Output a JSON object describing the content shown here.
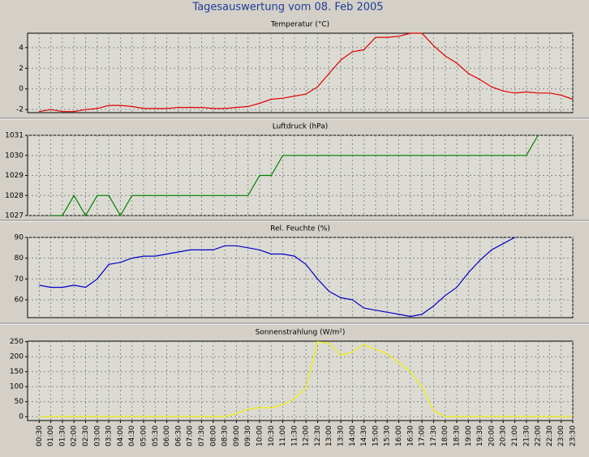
{
  "title": "Tagesauswertung vom 08. Feb 2005",
  "chart_data": [
    {
      "type": "line",
      "title": "Temperatur (°C)",
      "color": "#e00000",
      "x": [
        0.5,
        1,
        1.5,
        2,
        2.5,
        3,
        3.5,
        4,
        4.5,
        5,
        5.5,
        6,
        6.5,
        7,
        7.5,
        8,
        8.5,
        9,
        9.5,
        10,
        10.5,
        11,
        11.5,
        12,
        12.5,
        13,
        13.5,
        14,
        14.5,
        15,
        15.5,
        16,
        16.5,
        17,
        17.5,
        18,
        18.5,
        19,
        19.5,
        20,
        20.5,
        21,
        21.5,
        22,
        22.5,
        23,
        23.5
      ],
      "values": [
        -2.2,
        -2,
        -2.2,
        -2.2,
        -2,
        -1.9,
        -1.6,
        -1.6,
        -1.7,
        -1.9,
        -1.9,
        -1.9,
        -1.8,
        -1.8,
        -1.8,
        -1.9,
        -1.9,
        -1.8,
        -1.7,
        -1.4,
        -1,
        -0.9,
        -0.7,
        -0.5,
        0.2,
        1.5,
        2.8,
        3.6,
        3.8,
        5,
        5,
        5.1,
        5.4,
        5.4,
        4.2,
        3.2,
        2.5,
        1.5,
        0.9,
        0.2,
        -0.2,
        -0.4,
        -0.3,
        -0.4,
        -0.4,
        -0.6,
        -1
      ],
      "ylim": [
        -2.3,
        5.4
      ],
      "yticks": [
        -2,
        0,
        2,
        4
      ],
      "grid": true
    },
    {
      "type": "line",
      "title": "Luftdruck (hPa)",
      "color": "#008000",
      "x": [
        0.5,
        1,
        1.5,
        2,
        2.5,
        3,
        3.5,
        4,
        4.5,
        5,
        5.5,
        6,
        6.5,
        7,
        7.5,
        8,
        8.5,
        9,
        9.5,
        10,
        10.5,
        11,
        11.5,
        12,
        12.5,
        13,
        13.5,
        14,
        14.5,
        15,
        15.5,
        16,
        16.5,
        17,
        17.5,
        18,
        18.5,
        19,
        19.5,
        20,
        20.5,
        21,
        21.5,
        22,
        22.5,
        23,
        23.5
      ],
      "values": [
        null,
        1027,
        1027,
        1028,
        1027,
        1028,
        1028,
        1027,
        1028,
        1028,
        1028,
        1028,
        1028,
        1028,
        1028,
        1028,
        1028,
        1028,
        1028,
        1029,
        1029,
        1030,
        1030,
        1030,
        1030,
        1030,
        1030,
        1030,
        1030,
        1030,
        1030,
        1030,
        1030,
        1030,
        1030,
        1030,
        1030,
        1030,
        1030,
        1030,
        1030,
        1030,
        1030,
        1031,
        null,
        null,
        null
      ],
      "ylim": [
        1027,
        1031
      ],
      "yticks": [
        1027,
        1028,
        1029,
        1030,
        1031
      ],
      "grid": true
    },
    {
      "type": "line",
      "title": "Rel. Feuchte (%)",
      "color": "#0000c8",
      "x": [
        0.5,
        1,
        1.5,
        2,
        2.5,
        3,
        3.5,
        4,
        4.5,
        5,
        5.5,
        6,
        6.5,
        7,
        7.5,
        8,
        8.5,
        9,
        9.5,
        10,
        10.5,
        11,
        11.5,
        12,
        12.5,
        13,
        13.5,
        14,
        14.5,
        15,
        15.5,
        16,
        16.5,
        17,
        17.5,
        18,
        18.5,
        19,
        19.5,
        20,
        20.5,
        21,
        21.5,
        22,
        22.5,
        23,
        23.5
      ],
      "values": [
        67,
        66,
        66,
        67,
        66,
        70,
        77,
        78,
        80,
        81,
        81,
        82,
        83,
        84,
        84,
        84,
        86,
        86,
        85,
        84,
        82,
        82,
        81,
        77,
        70,
        64,
        61,
        60,
        56,
        55,
        54,
        53,
        52,
        53,
        57,
        62,
        66,
        73,
        79,
        84,
        87,
        90,
        null,
        null,
        null,
        null,
        null
      ],
      "ylim": [
        51.4,
        90
      ],
      "yticks": [
        60,
        70,
        80,
        90
      ],
      "grid": true
    },
    {
      "type": "line",
      "title": "Sonnenstrahlung (W/m²)",
      "color": "#f0f000",
      "x": [
        0.5,
        1,
        1.5,
        2,
        2.5,
        3,
        3.5,
        4,
        4.5,
        5,
        5.5,
        6,
        6.5,
        7,
        7.5,
        8,
        8.5,
        9,
        9.5,
        10,
        10.5,
        11,
        11.5,
        12,
        12.5,
        13,
        13.5,
        14,
        14.5,
        15,
        15.5,
        16,
        16.5,
        17,
        17.5,
        18,
        18.5,
        19,
        19.5,
        20,
        20.5,
        21,
        21.5,
        22,
        22.5,
        23,
        23.5
      ],
      "values": [
        0,
        0,
        0,
        0,
        0,
        0,
        0,
        0,
        0,
        0,
        0,
        0,
        0,
        0,
        0,
        0,
        0,
        10,
        25,
        30,
        30,
        40,
        60,
        95,
        250,
        245,
        205,
        215,
        240,
        225,
        210,
        180,
        150,
        100,
        20,
        0,
        0,
        0,
        0,
        0,
        0,
        0,
        0,
        0,
        0,
        0,
        0
      ],
      "ylim": [
        -13,
        252
      ],
      "yticks": [
        0,
        50,
        100,
        150,
        200,
        250
      ],
      "grid": true,
      "xlim": [
        0,
        23.5
      ],
      "xticks": [
        {
          "value": 0.5,
          "label": "00:30"
        },
        {
          "value": 1,
          "label": "01:00"
        },
        {
          "value": 1.5,
          "label": "01:30"
        },
        {
          "value": 2,
          "label": "02:00"
        },
        {
          "value": 2.5,
          "label": "02:30"
        },
        {
          "value": 3,
          "label": "03:00"
        },
        {
          "value": 3.5,
          "label": "03:30"
        },
        {
          "value": 4,
          "label": "04:00"
        },
        {
          "value": 4.5,
          "label": "04:30"
        },
        {
          "value": 5,
          "label": "05:00"
        },
        {
          "value": 5.5,
          "label": "05:30"
        },
        {
          "value": 6,
          "label": "06:00"
        },
        {
          "value": 6.5,
          "label": "06:30"
        },
        {
          "value": 7,
          "label": "07:00"
        },
        {
          "value": 7.5,
          "label": "07:30"
        },
        {
          "value": 8,
          "label": "08:00"
        },
        {
          "value": 8.5,
          "label": "08:30"
        },
        {
          "value": 9,
          "label": "09:00"
        },
        {
          "value": 9.5,
          "label": "09:30"
        },
        {
          "value": 10,
          "label": "10:00"
        },
        {
          "value": 10.5,
          "label": "10:30"
        },
        {
          "value": 11,
          "label": "11:00"
        },
        {
          "value": 11.5,
          "label": "11:30"
        },
        {
          "value": 12,
          "label": "12:00"
        },
        {
          "value": 12.5,
          "label": "12:30"
        },
        {
          "value": 13,
          "label": "13:00"
        },
        {
          "value": 13.5,
          "label": "13:30"
        },
        {
          "value": 14,
          "label": "14:00"
        },
        {
          "value": 14.5,
          "label": "14:30"
        },
        {
          "value": 15,
          "label": "15:00"
        },
        {
          "value": 15.5,
          "label": "15:30"
        },
        {
          "value": 16,
          "label": "16:00"
        },
        {
          "value": 16.5,
          "label": "16:30"
        },
        {
          "value": 17,
          "label": "17:00"
        },
        {
          "value": 17.5,
          "label": "17:30"
        },
        {
          "value": 18,
          "label": "18:00"
        },
        {
          "value": 18.5,
          "label": "18:30"
        },
        {
          "value": 19,
          "label": "19:00"
        },
        {
          "value": 19.5,
          "label": "19:30"
        },
        {
          "value": 20,
          "label": "20:00"
        },
        {
          "value": 20.5,
          "label": "20:30"
        },
        {
          "value": 21,
          "label": "21:00"
        },
        {
          "value": 21.5,
          "label": "21:30"
        },
        {
          "value": 22,
          "label": "22:00"
        },
        {
          "value": 22.5,
          "label": "22:30"
        },
        {
          "value": 23,
          "label": "23:00"
        },
        {
          "value": 23.5,
          "label": "23:30"
        }
      ]
    }
  ]
}
